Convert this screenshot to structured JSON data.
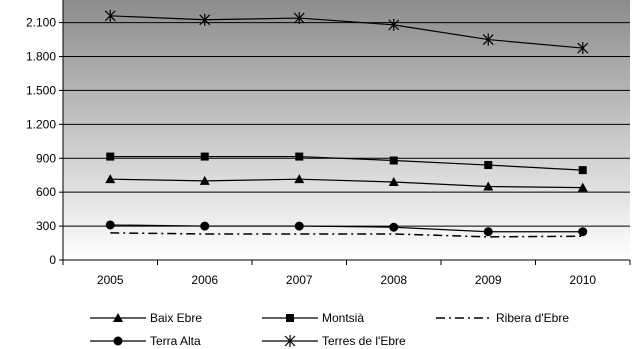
{
  "chart_data": {
    "type": "line",
    "title": "",
    "xlabel": "",
    "ylabel": "",
    "x": [
      "2005",
      "2006",
      "2007",
      "2008",
      "2009",
      "2010"
    ],
    "ylim": [
      0,
      2300
    ],
    "yticks": [
      0,
      300,
      600,
      900,
      1200,
      1500,
      1800,
      2100
    ],
    "ytick_labels": [
      "0",
      "300",
      "600",
      "900",
      "1.200",
      "1.500",
      "1.800",
      "2.100"
    ],
    "grid": true,
    "legend_position": "bottom",
    "background": "gray-gradient",
    "series": [
      {
        "name": "Baix Ebre",
        "marker": "triangle",
        "line": "solid",
        "color": "#000000",
        "values": [
          715,
          700,
          715,
          690,
          650,
          640
        ]
      },
      {
        "name": "Montsià",
        "marker": "square",
        "line": "solid",
        "color": "#000000",
        "values": [
          915,
          915,
          915,
          880,
          840,
          795
        ]
      },
      {
        "name": "Ribera d'Ebre",
        "marker": "none",
        "line": "dash-dot",
        "color": "#000000",
        "values": [
          240,
          230,
          230,
          230,
          205,
          210
        ]
      },
      {
        "name": "Terra Alta",
        "marker": "circle",
        "line": "solid",
        "color": "#000000",
        "values": [
          310,
          300,
          300,
          290,
          250,
          250
        ]
      },
      {
        "name": "Terres de l'Ebre",
        "marker": "star",
        "line": "solid",
        "color": "#000000",
        "values": [
          2160,
          2125,
          2140,
          2080,
          1950,
          1875
        ]
      }
    ]
  }
}
